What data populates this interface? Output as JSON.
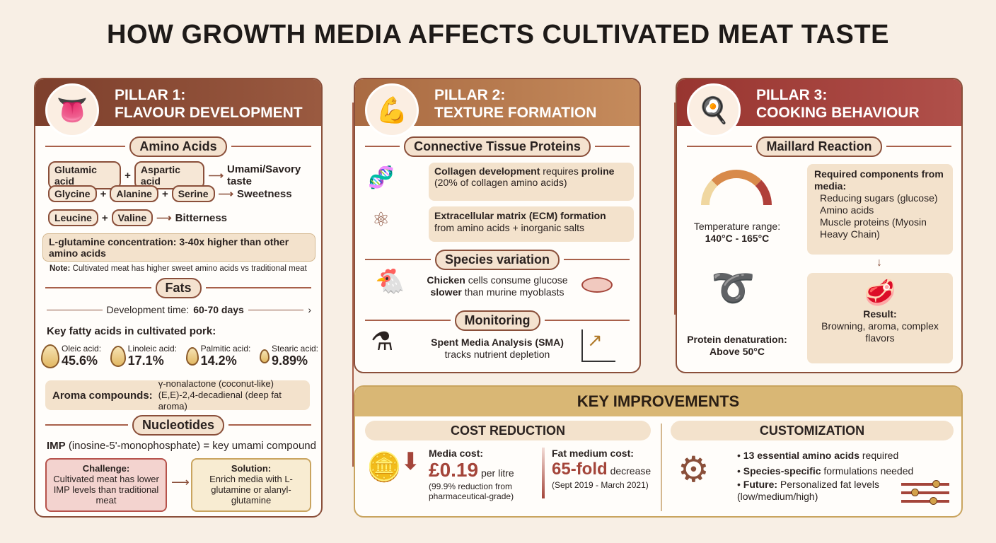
{
  "title": "HOW GROWTH MEDIA AFFECTS CULTIVATED MEAT TASTE",
  "colors": {
    "pillar1": "#8a4a35",
    "pillar2": "#b87a4e",
    "pillar3": "#a43f38",
    "key": "#c9a45f",
    "background": "#f8efe5"
  },
  "pillar1": {
    "label": "PILLAR 1:",
    "name": "FLAVOUR DEVELOPMENT",
    "icon": "tongue-molecule-icon",
    "amino": {
      "heading": "Amino Acids",
      "rows": [
        {
          "items": [
            "Glutamic acid",
            "Aspartic acid"
          ],
          "result": "Umami/Savory taste"
        },
        {
          "items": [
            "Glycine",
            "Alanine",
            "Serine"
          ],
          "result": "Sweetness"
        },
        {
          "items": [
            "Leucine",
            "Valine"
          ],
          "result": "Bitterness"
        }
      ],
      "glutamine": "L-glutamine concentration: 3-40x higher than other amino acids",
      "note_label": "Note:",
      "note": "Cultivated meat has higher sweet amino acids vs traditional meat"
    },
    "fats": {
      "heading": "Fats",
      "dev_label": "Development time:",
      "dev_value": "60-70 days",
      "key_label": "Key fatty acids in cultivated pork:",
      "acids": [
        {
          "name": "Oleic acid:",
          "value": "45.6%"
        },
        {
          "name": "Linoleic acid:",
          "value": "17.1%"
        },
        {
          "name": "Palmitic acid:",
          "value": "14.2%"
        },
        {
          "name": "Stearic acid:",
          "value": "9.89%"
        }
      ],
      "aroma_label": "Aroma compounds:",
      "aroma": [
        "γ-nonalactone (coconut-like)",
        "(E,E)-2,4-decadienal (deep fat aroma)"
      ]
    },
    "nucleotides": {
      "heading": "Nucleotides",
      "imp_bold": "IMP",
      "imp_text": "(inosine-5'-monophosphate) = key umami compound",
      "challenge_label": "Challenge:",
      "challenge": "Cultivated meat has lower IMP levels than traditional meat",
      "solution_label": "Solution:",
      "solution": "Enrich media with L-glutamine or alanyl-glutamine"
    }
  },
  "pillar2": {
    "label": "PILLAR 2:",
    "name": "TEXTURE FORMATION",
    "icon": "muscle-icon",
    "ctp_heading": "Connective Tissue Proteins",
    "collagen_bold": "Collagen development",
    "collagen_mid": "requires",
    "collagen_bold2": "proline",
    "collagen_sub": "(20% of collagen amino acids)",
    "ecm_bold": "Extracellular matrix (ECM) formation",
    "ecm_sub": "from amino acids + inorganic salts",
    "species_heading": "Species variation",
    "species_bold": "Chicken",
    "species_text": "cells consume glucose",
    "species_bold2": "slower",
    "species_text2": "than murine myoblasts",
    "monitoring_heading": "Monitoring",
    "sma_title": "Spent Media Analysis (SMA)",
    "sma_sub": "tracks nutrient depletion"
  },
  "pillar3": {
    "label": "PILLAR 3:",
    "name": "COOKING BEHAVIOUR",
    "icon": "frying-pan-icon",
    "maillard_heading": "Maillard Reaction",
    "temp_label": "Temperature range:",
    "temp_value": "140°C - 165°C",
    "req_title": "Required components from media:",
    "req_items": [
      "Reducing sugars (glucose)",
      "Amino acids",
      "Muscle proteins (Myosin Heavy Chain)"
    ],
    "denat_label": "Protein denaturation:",
    "denat_value": "Above 50°C",
    "result_label": "Result:",
    "result_text": "Browning, aroma, complex flavors"
  },
  "key": {
    "heading": "KEY IMPROVEMENTS",
    "cost": {
      "heading": "COST REDUCTION",
      "media_label": "Media cost:",
      "media_value": "£0.19",
      "media_unit": "per litre",
      "media_note": "(99.9% reduction from pharmaceutical-grade)",
      "fat_label": "Fat medium cost:",
      "fat_value": "65-fold",
      "fat_unit": "decrease",
      "fat_note": "(Sept 2019 - March 2021)"
    },
    "custom": {
      "heading": "CUSTOMIZATION",
      "items": [
        {
          "bold": "13 essential amino acids",
          "text": "required"
        },
        {
          "bold": "Species-specific",
          "text": "formulations needed"
        },
        {
          "bold": "Future:",
          "text": "Personalized fat levels (low/medium/high)"
        }
      ]
    }
  }
}
